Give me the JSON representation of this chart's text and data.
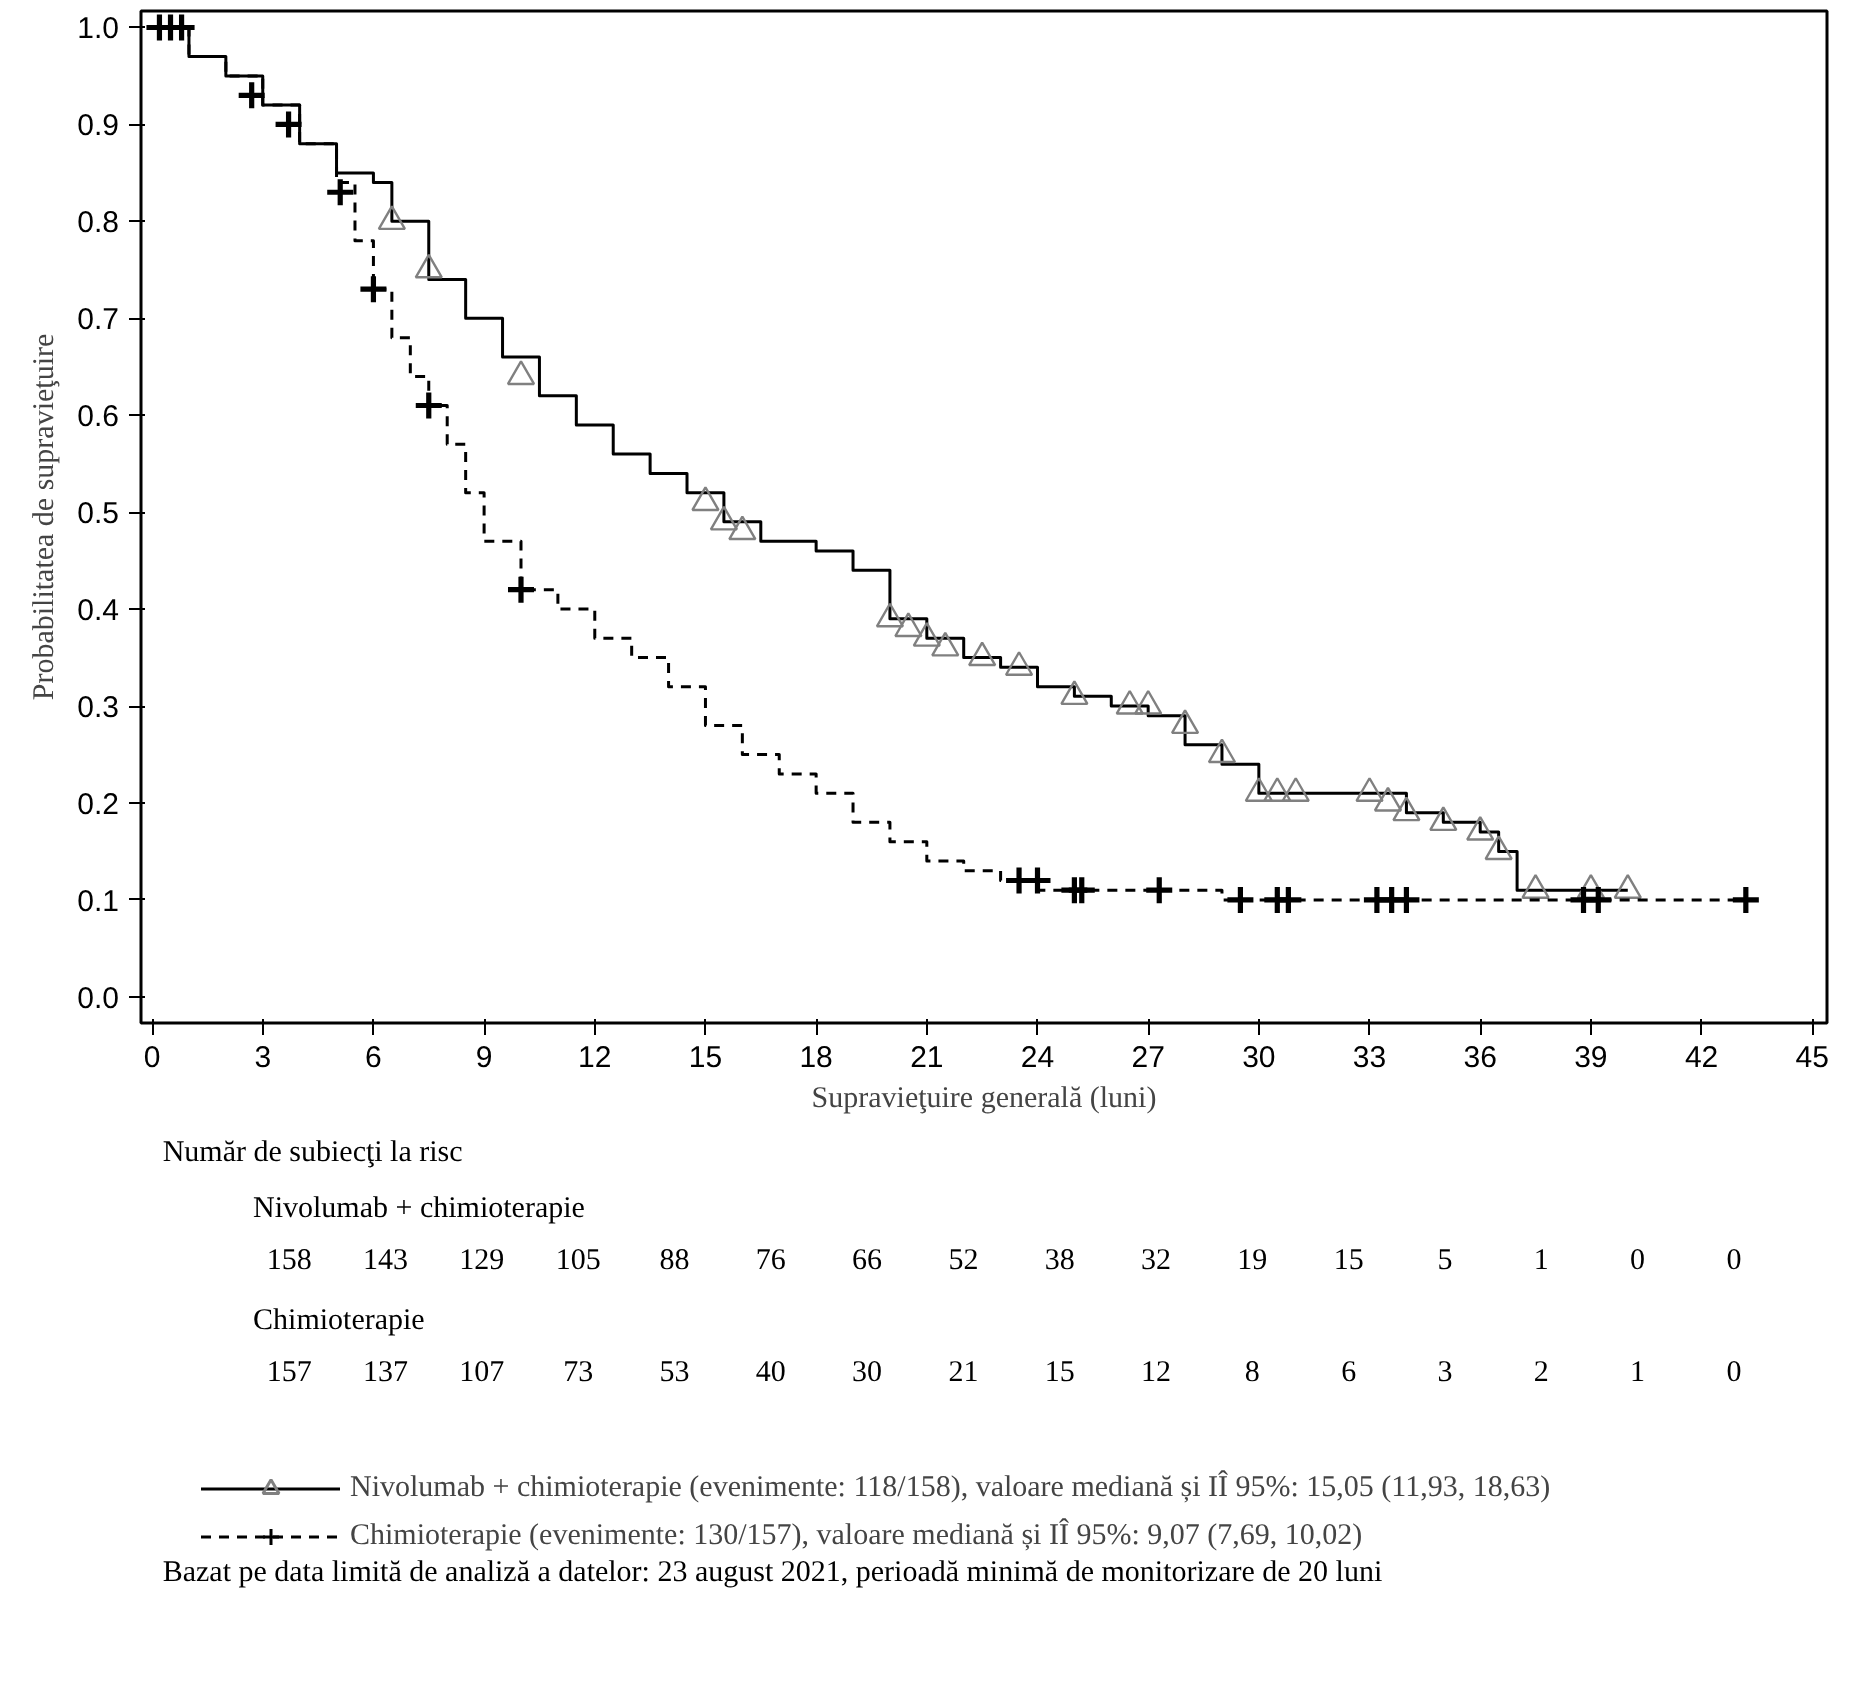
{
  "chart_data": {
    "type": "step",
    "xlabel": "Supravieţuire generală (luni)",
    "ylabel": "Probabilitatea de supravieţuire",
    "xlim": [
      -0.3,
      45.4
    ],
    "ylim": [
      -0.027,
      1.017
    ],
    "xticks": [
      0,
      3,
      6,
      9,
      12,
      15,
      18,
      21,
      24,
      27,
      30,
      33,
      36,
      39,
      42,
      45
    ],
    "yticks": [
      {
        "value": 0,
        "label": "0.0"
      },
      {
        "value": 0.1,
        "label": "0.1"
      },
      {
        "value": 0.2,
        "label": "0.2"
      },
      {
        "value": 0.3,
        "label": "0.3"
      },
      {
        "value": 0.4,
        "label": "0.4"
      },
      {
        "value": 0.5,
        "label": "0.5"
      },
      {
        "value": 0.6,
        "label": "0.6"
      },
      {
        "value": 0.7,
        "label": "0.7"
      },
      {
        "value": 0.8,
        "label": "0.8"
      },
      {
        "value": 0.9,
        "label": "0.9"
      },
      {
        "value": 1,
        "label": "1.0"
      }
    ],
    "grid": false,
    "legend": "bottom",
    "series": [
      {
        "name": "Nivolumab + chimioterapie (evenimente: 118/158), valoare mediană și IÎ 95%: 15,05 (11,93, 18,63)",
        "line_style": "solid",
        "color": "#000000",
        "x": [
          0,
          1,
          2,
          3,
          4,
          5,
          6,
          6.5,
          7.5,
          8.5,
          9.5,
          10.5,
          11.5,
          12.5,
          13.5,
          14.5,
          15.5,
          16.5,
          18,
          19,
          20,
          21,
          22,
          23,
          24,
          25,
          26,
          27,
          28,
          29,
          30,
          33,
          34,
          35,
          36,
          36.5,
          37,
          40
        ],
        "values": [
          1.0,
          0.97,
          0.95,
          0.92,
          0.88,
          0.85,
          0.84,
          0.8,
          0.74,
          0.7,
          0.66,
          0.62,
          0.59,
          0.56,
          0.54,
          0.52,
          0.49,
          0.47,
          0.46,
          0.44,
          0.39,
          0.37,
          0.35,
          0.34,
          0.32,
          0.31,
          0.3,
          0.29,
          0.26,
          0.24,
          0.21,
          0.21,
          0.19,
          0.18,
          0.17,
          0.15,
          0.11,
          0.11
        ]
      },
      {
        "type": "scatter",
        "marker": "triangle",
        "color": "#808080",
        "x": [
          6.5,
          7.5,
          10,
          15,
          15.5,
          16,
          20,
          20.5,
          21,
          21.5,
          22.5,
          23.5,
          25,
          26.5,
          27,
          28,
          29,
          30,
          30.5,
          31,
          33,
          33.5,
          34,
          35,
          36,
          36.5,
          37.5,
          39,
          40
        ],
        "values": [
          0.8,
          0.75,
          0.64,
          0.51,
          0.49,
          0.48,
          0.39,
          0.38,
          0.37,
          0.36,
          0.35,
          0.34,
          0.31,
          0.3,
          0.3,
          0.28,
          0.25,
          0.21,
          0.21,
          0.21,
          0.21,
          0.2,
          0.19,
          0.18,
          0.17,
          0.15,
          0.11,
          0.11,
          0.11
        ]
      },
      {
        "name": "Chimioterapie (evenimente: 130/157), valoare mediană și IÎ 95%: 9,07 (7,69, 10,02)",
        "line_style": "dashed",
        "color": "#000000",
        "x": [
          0,
          1,
          2,
          3,
          4,
          5,
          5.5,
          6,
          6.5,
          7,
          7.5,
          8,
          8.5,
          9,
          10,
          11,
          12,
          13,
          14,
          15,
          16,
          17,
          18,
          19,
          20,
          21,
          22,
          23,
          24,
          29,
          43.2
        ],
        "values": [
          1.0,
          0.97,
          0.95,
          0.92,
          0.88,
          0.84,
          0.78,
          0.73,
          0.68,
          0.64,
          0.61,
          0.57,
          0.52,
          0.47,
          0.42,
          0.4,
          0.37,
          0.35,
          0.32,
          0.28,
          0.25,
          0.23,
          0.21,
          0.18,
          0.16,
          0.14,
          0.13,
          0.12,
          0.11,
          0.1,
          0.1
        ]
      },
      {
        "type": "scatter",
        "marker": "cross",
        "color": "#000000",
        "x": [
          0.2,
          0.5,
          0.8,
          2.7,
          3.7,
          5.1,
          6,
          7.5,
          10,
          23.5,
          24,
          25,
          25.2,
          27.3,
          29.5,
          30.5,
          30.8,
          33.2,
          33.6,
          34,
          38.8,
          39.2,
          43.2
        ],
        "values": [
          1.0,
          1.0,
          1.0,
          0.93,
          0.9,
          0.83,
          0.73,
          0.61,
          0.42,
          0.12,
          0.12,
          0.11,
          0.11,
          0.11,
          0.1,
          0.1,
          0.1,
          0.1,
          0.1,
          0.1,
          0.1,
          0.1,
          0.1
        ]
      }
    ],
    "annotations": [
      "Număr de subiecţi la risc",
      "Nivolumab + chimioterapie",
      "158 143 129 105 88 76 66 52 38 32 19 15 5 1 0 0",
      "Chimioterapie",
      "157 137 107 73 53 40 30 21 15 12 8 6 3 2 1 0",
      "Bazat pe data limită de analiză a datelor: 23 august 2021, perioadă minimă de monitorizare de 20 luni"
    ]
  }
}
